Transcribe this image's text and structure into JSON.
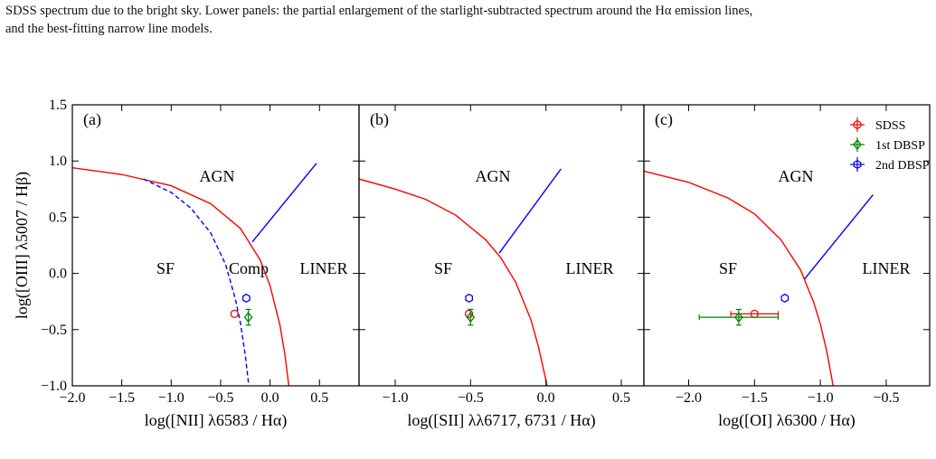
{
  "caption_lines": [
    "SDSS spectrum due to the bright sky. Lower panels: the partial enlargement of the starlight-subtracted spectrum around the Hα emission lines,",
    "and the best-fitting narrow line models."
  ],
  "chart_data": [
    {
      "type": "scatter",
      "panel_label": "(a)",
      "xlabel": "log([NII] λ6583 / Hα)",
      "ylabel": "log([OIII] λ5007 / Hβ)",
      "xlim": [
        -2.0,
        0.9
      ],
      "ylim": [
        -1.0,
        1.5
      ],
      "xticks": [
        {
          "value": -2.0,
          "label": "−2.0"
        },
        {
          "value": -1.5,
          "label": "−1.5"
        },
        {
          "value": -1.0,
          "label": "−1.0"
        },
        {
          "value": -0.5,
          "label": "−0.5"
        },
        {
          "value": 0.0,
          "label": "0.0"
        },
        {
          "value": 0.5,
          "label": "0.5"
        }
      ],
      "yticks": [
        {
          "value": -1.0,
          "label": "−1.0"
        },
        {
          "value": -0.5,
          "label": "−0.5"
        },
        {
          "value": 0.0,
          "label": "0.0"
        },
        {
          "value": 0.5,
          "label": "0.5"
        },
        {
          "value": 1.0,
          "label": "1.0"
        },
        {
          "value": 1.5,
          "label": "1.5"
        }
      ],
      "annotations": [
        "AGN",
        "SF",
        "Comp",
        "LINER"
      ],
      "curves": [
        {
          "color": "red",
          "style": "solid",
          "x": [
            -2.0,
            -1.5,
            -1.0,
            -0.6,
            -0.3,
            -0.1,
            0.0,
            0.1,
            0.15,
            0.19
          ],
          "y": [
            0.94,
            0.88,
            0.78,
            0.62,
            0.4,
            0.12,
            -0.11,
            -0.46,
            -0.72,
            -1.0
          ]
        },
        {
          "color": "blue",
          "style": "dashed",
          "x": [
            -1.28,
            -1.0,
            -0.8,
            -0.6,
            -0.45,
            -0.35,
            -0.3,
            -0.25,
            -0.215
          ],
          "y": [
            0.84,
            0.72,
            0.58,
            0.36,
            0.08,
            -0.23,
            -0.44,
            -0.73,
            -1.0
          ]
        },
        {
          "color": "blue",
          "style": "solid",
          "x": [
            -0.18,
            0.47
          ],
          "y": [
            0.28,
            0.98
          ]
        }
      ],
      "series": [
        {
          "name": "SDSS",
          "color": "red",
          "marker": "o",
          "x": [
            -0.36
          ],
          "y": [
            -0.36
          ]
        },
        {
          "name": "1st DBSP",
          "color": "green",
          "marker": "D",
          "x": [
            -0.22
          ],
          "y": [
            -0.39
          ],
          "yerr": [
            0.07
          ]
        },
        {
          "name": "2nd DBSP",
          "color": "blue",
          "marker": "h",
          "x": [
            -0.24
          ],
          "y": [
            -0.22
          ]
        }
      ]
    },
    {
      "type": "scatter",
      "panel_label": "(b)",
      "xlabel": "log([SII] λλ6717, 6731 / Hα)",
      "xlim": [
        -1.24,
        0.65
      ],
      "ylim": [
        -1.0,
        1.5
      ],
      "xticks": [
        {
          "value": -1.0,
          "label": "−1.0"
        },
        {
          "value": -0.5,
          "label": "−0.5"
        },
        {
          "value": 0.0,
          "label": "0.0"
        },
        {
          "value": 0.5,
          "label": "0.5"
        }
      ],
      "yticks": [
        -1.0,
        -0.5,
        0.0,
        0.5,
        1.0,
        1.5
      ],
      "annotations": [
        "AGN",
        "SF",
        "LINER"
      ],
      "curves": [
        {
          "color": "red",
          "style": "solid",
          "x": [
            -1.24,
            -1.0,
            -0.8,
            -0.6,
            -0.4,
            -0.3,
            -0.2,
            -0.1,
            -0.05,
            0.0,
            0.007
          ],
          "y": [
            0.84,
            0.75,
            0.66,
            0.52,
            0.3,
            0.14,
            -0.08,
            -0.41,
            -0.65,
            -0.95,
            -1.0
          ]
        },
        {
          "color": "blue",
          "style": "solid",
          "x": [
            -0.31,
            0.1
          ],
          "y": [
            0.18,
            0.93
          ]
        }
      ],
      "series": [
        {
          "name": "SDSS",
          "color": "red",
          "marker": "o",
          "x": [
            -0.51
          ],
          "y": [
            -0.36
          ]
        },
        {
          "name": "1st DBSP",
          "color": "green",
          "marker": "D",
          "x": [
            -0.5
          ],
          "y": [
            -0.39
          ],
          "yerr": [
            0.07
          ]
        },
        {
          "name": "2nd DBSP",
          "color": "blue",
          "marker": "h",
          "x": [
            -0.51
          ],
          "y": [
            -0.22
          ]
        }
      ]
    },
    {
      "type": "scatter",
      "panel_label": "(c)",
      "xlabel": "log([OI] λ6300 / Hα)",
      "xlim": [
        -2.34,
        -0.17
      ],
      "ylim": [
        -1.0,
        1.5
      ],
      "xticks": [
        {
          "value": -2.0,
          "label": "−2.0"
        },
        {
          "value": -1.5,
          "label": "−1.5"
        },
        {
          "value": -1.0,
          "label": "−1.0"
        },
        {
          "value": -0.5,
          "label": "−0.5"
        }
      ],
      "yticks": [
        -1.0,
        -0.5,
        0.0,
        0.5,
        1.0,
        1.5
      ],
      "annotations": [
        "AGN",
        "SF",
        "LINER"
      ],
      "legend": "upper right",
      "curves": [
        {
          "color": "red",
          "style": "solid",
          "x": [
            -2.34,
            -2.0,
            -1.7,
            -1.5,
            -1.3,
            -1.15,
            -1.05,
            -1.0,
            -0.95,
            -0.903
          ],
          "y": [
            0.91,
            0.81,
            0.67,
            0.53,
            0.3,
            0.03,
            -0.26,
            -0.45,
            -0.7,
            -1.0
          ]
        },
        {
          "color": "blue",
          "style": "solid",
          "x": [
            -1.12,
            -0.6
          ],
          "y": [
            -0.05,
            0.7
          ]
        }
      ],
      "series": [
        {
          "name": "SDSS",
          "color": "red",
          "marker": "o",
          "x": [
            -1.5
          ],
          "y": [
            -0.36
          ],
          "xerr": [
            0.18
          ]
        },
        {
          "name": "1st DBSP",
          "color": "green",
          "marker": "D",
          "x": [
            -1.62
          ],
          "y": [
            -0.39
          ],
          "xerr": [
            0.3
          ],
          "yerr": [
            0.07
          ]
        },
        {
          "name": "2nd DBSP",
          "color": "blue",
          "marker": "h",
          "x": [
            -1.27
          ],
          "y": [
            -0.22
          ]
        }
      ]
    }
  ]
}
